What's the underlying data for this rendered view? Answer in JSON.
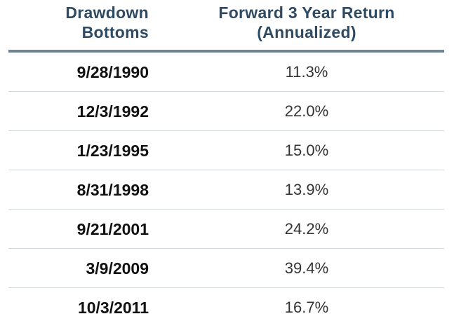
{
  "chart_data": {
    "type": "table",
    "columns": [
      "Drawdown Bottoms",
      "Forward 3 Year Return (Annualized)"
    ],
    "header": {
      "date_line1": "Drawdown",
      "date_line2": "Bottoms",
      "return_line1": "Forward 3 Year Return",
      "return_line2": "(Annualized)"
    },
    "rows": [
      {
        "date": "9/28/1990",
        "return": "11.3%"
      },
      {
        "date": "12/3/1992",
        "return": "22.0%"
      },
      {
        "date": "1/23/1995",
        "return": "15.0%"
      },
      {
        "date": "8/31/1998",
        "return": "13.9%"
      },
      {
        "date": "9/21/2001",
        "return": "24.2%"
      },
      {
        "date": "3/9/2009",
        "return": "39.4%"
      },
      {
        "date": "10/3/2011",
        "return": "16.7%"
      }
    ],
    "values": [
      11.3,
      22.0,
      15.0,
      13.9,
      24.2,
      39.4,
      16.7
    ],
    "colors": {
      "header_text": "#2e4b63",
      "header_rule": "#6e8596",
      "row_divider": "#d4d9dd"
    }
  }
}
